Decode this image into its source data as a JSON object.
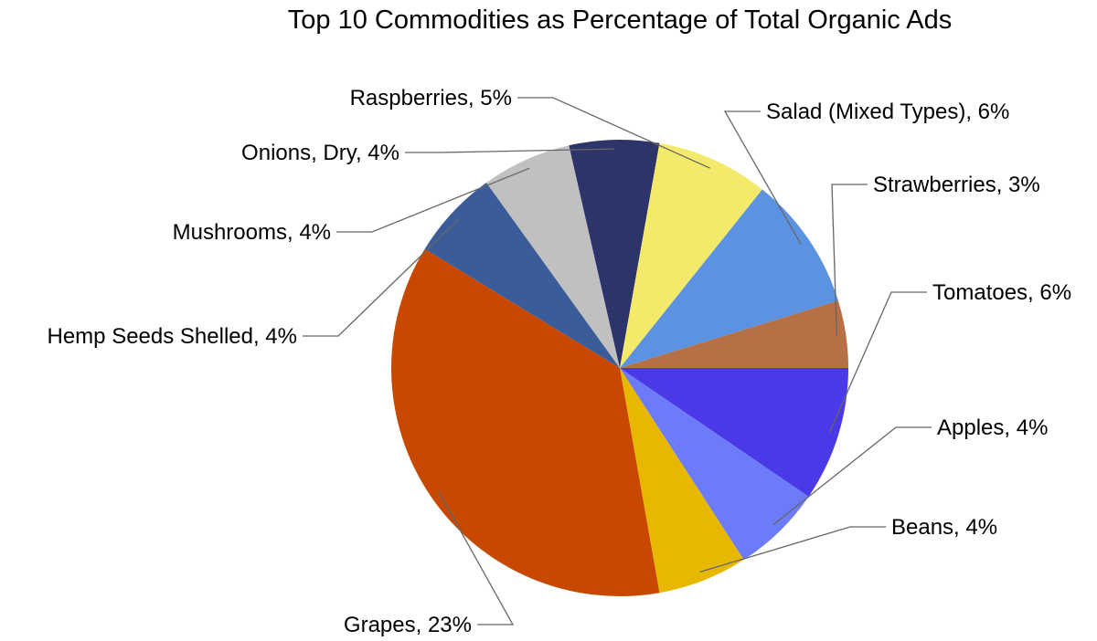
{
  "chart_data": {
    "type": "pie",
    "title": "Top 10 Commodities as Percentage of Total Organic Ads",
    "slices": [
      {
        "label": "Tomatoes",
        "value": 6,
        "value_label": "6%",
        "color": "#4939E6"
      },
      {
        "label": "Apples",
        "value": 4,
        "value_label": "4%",
        "color": "#6B7BFA"
      },
      {
        "label": "Beans",
        "value": 4,
        "value_label": "4%",
        "color": "#E8B800"
      },
      {
        "label": "Grapes",
        "value": 23,
        "value_label": "23%",
        "color": "#C94800"
      },
      {
        "label": "Hemp Seeds Shelled",
        "value": 4,
        "value_label": "4%",
        "color": "#3A5D9A"
      },
      {
        "label": "Mushrooms",
        "value": 4,
        "value_label": "4%",
        "color": "#C0C0C0"
      },
      {
        "label": "Onions, Dry",
        "value": 4,
        "value_label": "4%",
        "color": "#2C346A"
      },
      {
        "label": "Raspberries",
        "value": 5,
        "value_label": "5%",
        "color": "#F3E96A"
      },
      {
        "label": "Salad (Mixed Types)",
        "value": 6,
        "value_label": "6%",
        "color": "#5B93E2"
      },
      {
        "label": "Strawberries",
        "value": 3,
        "value_label": "3%",
        "color": "#B76F45"
      }
    ],
    "start_angle_deg": 90,
    "direction": "clockwise",
    "legend": "none",
    "data_labels": "outside with leader lines"
  }
}
